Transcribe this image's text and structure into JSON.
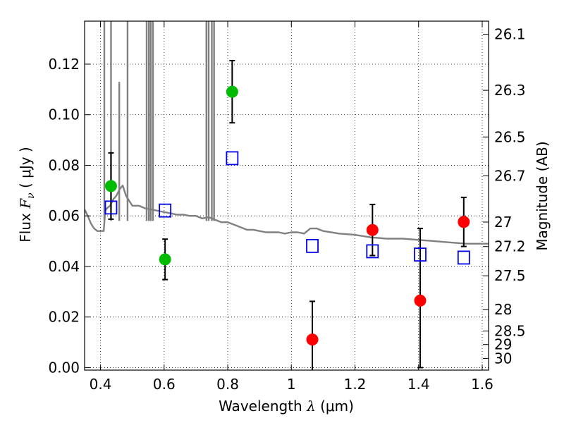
{
  "chart_data": {
    "type": "scatter",
    "title": "",
    "xlabel_prefix": "Wavelength",
    "xlabel_symbol": "λ",
    "xlabel_unit": "(μm)",
    "ylabel_prefix": "Flux",
    "ylabel_symbol": "F",
    "ylabel_subscript": "ν",
    "ylabel_unit": "( μJy )",
    "y2label": "Magnitude (AB)",
    "xlim": [
      0.35,
      1.62
    ],
    "ylim": [
      -0.001,
      0.137
    ],
    "grid": true,
    "grid_style": "dotted",
    "x_ticks": [
      {
        "value": 0.4,
        "label": "0.4"
      },
      {
        "value": 0.6,
        "label": "0.6"
      },
      {
        "value": 0.8,
        "label": "0.8"
      },
      {
        "value": 1.0,
        "label": "1"
      },
      {
        "value": 1.2,
        "label": "1.2"
      },
      {
        "value": 1.4,
        "label": "1.4"
      },
      {
        "value": 1.6,
        "label": "1.6"
      }
    ],
    "y_ticks": [
      {
        "value": 0.0,
        "label": "0.00"
      },
      {
        "value": 0.02,
        "label": "0.02"
      },
      {
        "value": 0.04,
        "label": "0.04"
      },
      {
        "value": 0.06,
        "label": "0.06"
      },
      {
        "value": 0.08,
        "label": "0.08"
      },
      {
        "value": 0.1,
        "label": "0.10"
      },
      {
        "value": 0.12,
        "label": "0.12"
      }
    ],
    "y2_ticks": [
      {
        "label": "26.1",
        "mag": 26.1
      },
      {
        "label": "26.3",
        "mag": 26.3
      },
      {
        "label": "26.5",
        "mag": 26.5
      },
      {
        "label": "26.7",
        "mag": 26.7
      },
      {
        "label": "27",
        "mag": 27.0
      },
      {
        "label": "27.2",
        "mag": 27.2
      },
      {
        "label": "27.5",
        "mag": 27.5
      },
      {
        "label": "28",
        "mag": 28.0
      },
      {
        "label": "28.5",
        "mag": 28.5
      },
      {
        "label": "29",
        "mag": 29.0
      },
      {
        "label": "30",
        "mag": 30.0
      }
    ],
    "colors": {
      "model": "#808080",
      "optical": "#00bb00",
      "nir": "#ff0000",
      "model_phot": "#0000ee",
      "errorbar": "#000000"
    },
    "series": [
      {
        "kind": "model_spectrum",
        "x": [
          0.35,
          0.36,
          0.37,
          0.38,
          0.39,
          0.4,
          0.41,
          0.415,
          0.42,
          0.43,
          0.44,
          0.45,
          0.46,
          0.47,
          0.48,
          0.49,
          0.5,
          0.52,
          0.54,
          0.56,
          0.58,
          0.6,
          0.62,
          0.64,
          0.66,
          0.68,
          0.7,
          0.72,
          0.74,
          0.76,
          0.78,
          0.8,
          0.82,
          0.84,
          0.86,
          0.88,
          0.9,
          0.92,
          0.94,
          0.96,
          0.98,
          1.0,
          1.02,
          1.04,
          1.06,
          1.08,
          1.1,
          1.15,
          1.2,
          1.25,
          1.3,
          1.35,
          1.4,
          1.45,
          1.5,
          1.55,
          1.6,
          1.62
        ],
        "y": [
          0.0625,
          0.06,
          0.057,
          0.055,
          0.054,
          0.054,
          0.054,
          0.062,
          0.063,
          0.064,
          0.0665,
          0.068,
          0.0705,
          0.072,
          0.068,
          0.066,
          0.064,
          0.064,
          0.063,
          0.0625,
          0.062,
          0.0615,
          0.061,
          0.0605,
          0.0605,
          0.06,
          0.06,
          0.059,
          0.0595,
          0.0585,
          0.0575,
          0.0575,
          0.0565,
          0.0555,
          0.0545,
          0.0545,
          0.054,
          0.0535,
          0.0535,
          0.0535,
          0.053,
          0.0535,
          0.0535,
          0.053,
          0.055,
          0.055,
          0.054,
          0.053,
          0.0525,
          0.0515,
          0.051,
          0.051,
          0.0505,
          0.05,
          0.0495,
          0.049,
          0.049,
          0.049
        ]
      },
      {
        "kind": "model_spikes",
        "x": [
          0.412,
          0.433,
          0.459,
          0.485,
          0.545,
          0.552,
          0.558,
          0.565,
          0.733,
          0.74,
          0.75,
          0.757
        ],
        "top": [
          0.137,
          0.137,
          0.113,
          0.137,
          0.137,
          0.137,
          0.137,
          0.137,
          0.137,
          0.137,
          0.137,
          0.137
        ]
      },
      {
        "kind": "observed",
        "name": "optical",
        "x": [
          0.433,
          0.603,
          0.814
        ],
        "y": [
          0.0718,
          0.0428,
          0.1091
        ],
        "yerr": [
          0.0131,
          0.008,
          0.0123
        ]
      },
      {
        "kind": "observed",
        "name": "nir",
        "x": [
          1.066,
          1.255,
          1.405,
          1.542
        ],
        "y": [
          0.0111,
          0.0544,
          0.0265,
          0.0576
        ],
        "yerr_low": [
          0.0141,
          0.0101,
          0.0265,
          0.0097
        ],
        "yerr_high": [
          0.0151,
          0.0101,
          0.0285,
          0.0097
        ]
      },
      {
        "kind": "model_photometry",
        "x": [
          0.433,
          0.603,
          0.814,
          1.066,
          1.255,
          1.405,
          1.542
        ],
        "y": [
          0.0633,
          0.0621,
          0.0828,
          0.0481,
          0.046,
          0.0447,
          0.0435
        ]
      }
    ]
  }
}
